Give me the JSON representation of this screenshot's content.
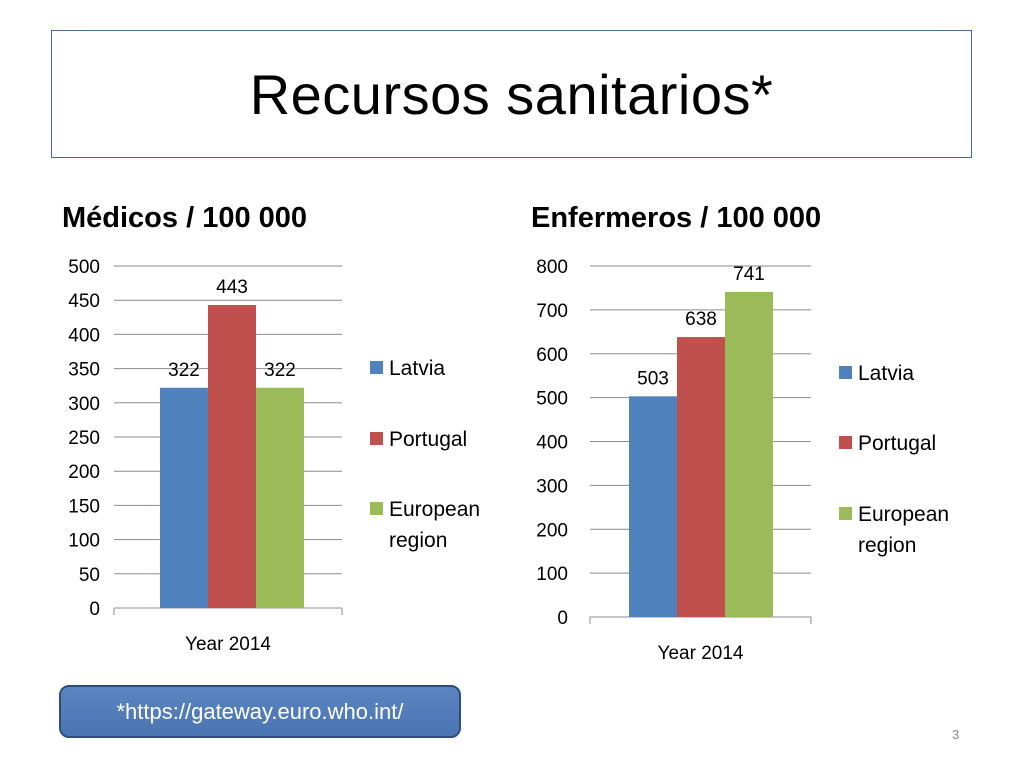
{
  "slide": {
    "title": "Recursos sanitarios*",
    "source": "*https://gateway.euro.who.int/",
    "page_number": "3"
  },
  "colors": {
    "Latvia": "#4f81bd",
    "Portugal": "#c0504d",
    "European region": "#9bbb59",
    "title_border": "#4a6a8f",
    "source_fill": "#4f7ec0"
  },
  "chart_data": [
    {
      "type": "bar",
      "title": "Médicos / 100 000",
      "categories": [
        "Year 2014"
      ],
      "series": [
        {
          "name": "Latvia",
          "values": [
            322
          ]
        },
        {
          "name": "Portugal",
          "values": [
            443
          ]
        },
        {
          "name": "European region",
          "values": [
            322
          ]
        }
      ],
      "ylim": [
        0,
        500
      ],
      "yticks": [
        0,
        50,
        100,
        150,
        200,
        250,
        300,
        350,
        400,
        450,
        500
      ],
      "grid": true,
      "legend": "right"
    },
    {
      "type": "bar",
      "title": "Enfermeros / 100 000",
      "categories": [
        "Year 2014"
      ],
      "series": [
        {
          "name": "Latvia",
          "values": [
            503
          ]
        },
        {
          "name": "Portugal",
          "values": [
            638
          ]
        },
        {
          "name": "European region",
          "values": [
            741
          ]
        }
      ],
      "ylim": [
        0,
        800
      ],
      "yticks": [
        0,
        100,
        200,
        300,
        400,
        500,
        600,
        700,
        800
      ],
      "grid": true,
      "legend": "right"
    }
  ]
}
